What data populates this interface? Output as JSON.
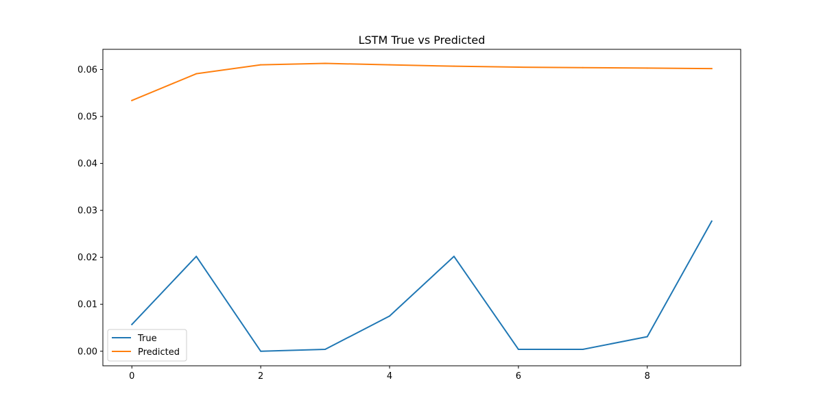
{
  "chart_data": {
    "type": "line",
    "title": "LSTM True vs Predicted",
    "xlabel": "",
    "ylabel": "",
    "x": [
      0,
      1,
      2,
      3,
      4,
      5,
      6,
      7,
      8,
      9
    ],
    "xlim": [
      -0.45,
      9.45
    ],
    "ylim": [
      -0.0031,
      0.0643
    ],
    "xticks": [
      0,
      2,
      4,
      6,
      8
    ],
    "xtick_labels": [
      "0",
      "2",
      "4",
      "6",
      "8"
    ],
    "yticks": [
      0.0,
      0.01,
      0.02,
      0.03,
      0.04,
      0.05,
      0.06
    ],
    "ytick_labels": [
      "0.00",
      "0.01",
      "0.02",
      "0.03",
      "0.04",
      "0.05",
      "0.06"
    ],
    "grid": false,
    "legend_position": "lower-left",
    "series": [
      {
        "name": "True",
        "color": "#1f77b4",
        "values": [
          0.0057,
          0.0202,
          0.0,
          0.0004,
          0.0075,
          0.0202,
          0.0004,
          0.0004,
          0.0031,
          0.0277
        ]
      },
      {
        "name": "Predicted",
        "color": "#ff7f0e",
        "values": [
          0.0534,
          0.0591,
          0.061,
          0.0613,
          0.061,
          0.0607,
          0.0605,
          0.0604,
          0.0603,
          0.0602
        ]
      }
    ]
  }
}
